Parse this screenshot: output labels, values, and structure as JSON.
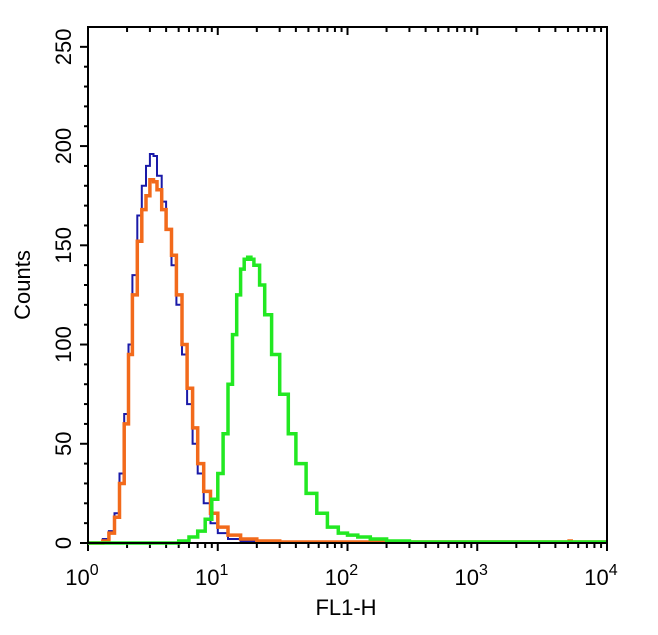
{
  "chart_data": {
    "type": "line",
    "title": "",
    "xlabel": "FL1-H",
    "ylabel": "Counts",
    "x_scale": "log",
    "xlim": [
      1,
      10000
    ],
    "ylim": [
      0,
      260
    ],
    "x_ticks": [
      {
        "value": 1,
        "base": "10",
        "exp": "0"
      },
      {
        "value": 10,
        "base": "10",
        "exp": "1"
      },
      {
        "value": 100,
        "base": "10",
        "exp": "2"
      },
      {
        "value": 1000,
        "base": "10",
        "exp": "3"
      },
      {
        "value": 10000,
        "base": "10",
        "exp": "4"
      }
    ],
    "y_ticks": [
      {
        "value": 0,
        "label": "0"
      },
      {
        "value": 50,
        "label": "50"
      },
      {
        "value": 100,
        "label": "100"
      },
      {
        "value": 150,
        "label": "150"
      },
      {
        "value": 200,
        "label": "200"
      },
      {
        "value": 250,
        "label": "250"
      }
    ],
    "grid": false,
    "series": [
      {
        "color": "#1a1aa8",
        "points": [
          [
            1,
            0
          ],
          [
            1.3,
            2
          ],
          [
            1.45,
            6
          ],
          [
            1.6,
            15
          ],
          [
            1.75,
            35
          ],
          [
            1.9,
            65
          ],
          [
            2.05,
            100
          ],
          [
            2.2,
            135
          ],
          [
            2.4,
            165
          ],
          [
            2.6,
            180
          ],
          [
            2.8,
            190
          ],
          [
            3.0,
            196
          ],
          [
            3.2,
            195
          ],
          [
            3.4,
            185
          ],
          [
            3.7,
            172
          ],
          [
            4.0,
            158
          ],
          [
            4.4,
            140
          ],
          [
            4.8,
            120
          ],
          [
            5.3,
            95
          ],
          [
            5.8,
            70
          ],
          [
            6.4,
            50
          ],
          [
            7.0,
            35
          ],
          [
            7.8,
            20
          ],
          [
            8.8,
            10
          ],
          [
            10,
            5
          ],
          [
            12,
            2
          ],
          [
            15,
            1
          ],
          [
            25,
            0
          ],
          [
            10000,
            0
          ]
        ]
      },
      {
        "color": "#f26a1b",
        "points": [
          [
            1,
            0
          ],
          [
            1.3,
            1
          ],
          [
            1.45,
            5
          ],
          [
            1.6,
            13
          ],
          [
            1.75,
            30
          ],
          [
            1.9,
            60
          ],
          [
            2.05,
            95
          ],
          [
            2.2,
            125
          ],
          [
            2.4,
            152
          ],
          [
            2.6,
            168
          ],
          [
            2.8,
            175
          ],
          [
            3.0,
            183
          ],
          [
            3.2,
            182
          ],
          [
            3.4,
            178
          ],
          [
            3.7,
            168
          ],
          [
            4.0,
            158
          ],
          [
            4.4,
            145
          ],
          [
            4.8,
            125
          ],
          [
            5.3,
            100
          ],
          [
            5.8,
            78
          ],
          [
            6.4,
            58
          ],
          [
            7.0,
            40
          ],
          [
            7.8,
            26
          ],
          [
            8.8,
            15
          ],
          [
            10,
            8
          ],
          [
            12,
            4
          ],
          [
            15,
            2
          ],
          [
            20,
            1
          ],
          [
            30,
            0.5
          ],
          [
            5000,
            0.5
          ],
          [
            5100,
            1
          ],
          [
            5300,
            0.5
          ],
          [
            10000,
            0.5
          ]
        ]
      },
      {
        "color": "#22e822",
        "points": [
          [
            1,
            0
          ],
          [
            4,
            0
          ],
          [
            5,
            1
          ],
          [
            6,
            3
          ],
          [
            7,
            6
          ],
          [
            8,
            12
          ],
          [
            9,
            22
          ],
          [
            10,
            35
          ],
          [
            11,
            55
          ],
          [
            12,
            80
          ],
          [
            13,
            105
          ],
          [
            14,
            125
          ],
          [
            15,
            138
          ],
          [
            16,
            143
          ],
          [
            17,
            144
          ],
          [
            18,
            143
          ],
          [
            19,
            140
          ],
          [
            21,
            130
          ],
          [
            23,
            115
          ],
          [
            26,
            95
          ],
          [
            30,
            75
          ],
          [
            35,
            55
          ],
          [
            40,
            40
          ],
          [
            48,
            25
          ],
          [
            58,
            15
          ],
          [
            70,
            8
          ],
          [
            85,
            5
          ],
          [
            100,
            4
          ],
          [
            120,
            3
          ],
          [
            150,
            2
          ],
          [
            200,
            1
          ],
          [
            300,
            0.5
          ],
          [
            10000,
            0.5
          ]
        ]
      }
    ]
  }
}
